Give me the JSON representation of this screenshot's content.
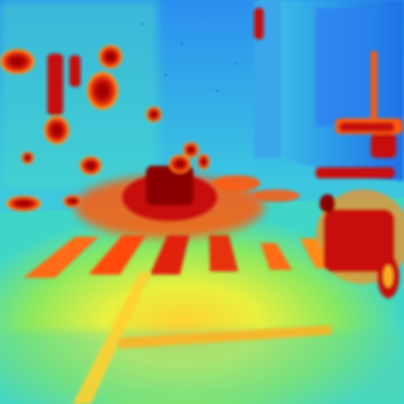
{
  "image": {
    "kind": "thermal-false-color street scene",
    "palette": {
      "cold_deep": "#1f6fe8",
      "cold": "#2aa8f0",
      "cool": "#3fd6c8",
      "mild": "#7ee86a",
      "warm": "#e8f040",
      "hot": "#ffb020",
      "hotter": "#ff5a10",
      "hottest": "#c80a08",
      "core": "#8a0000"
    }
  }
}
